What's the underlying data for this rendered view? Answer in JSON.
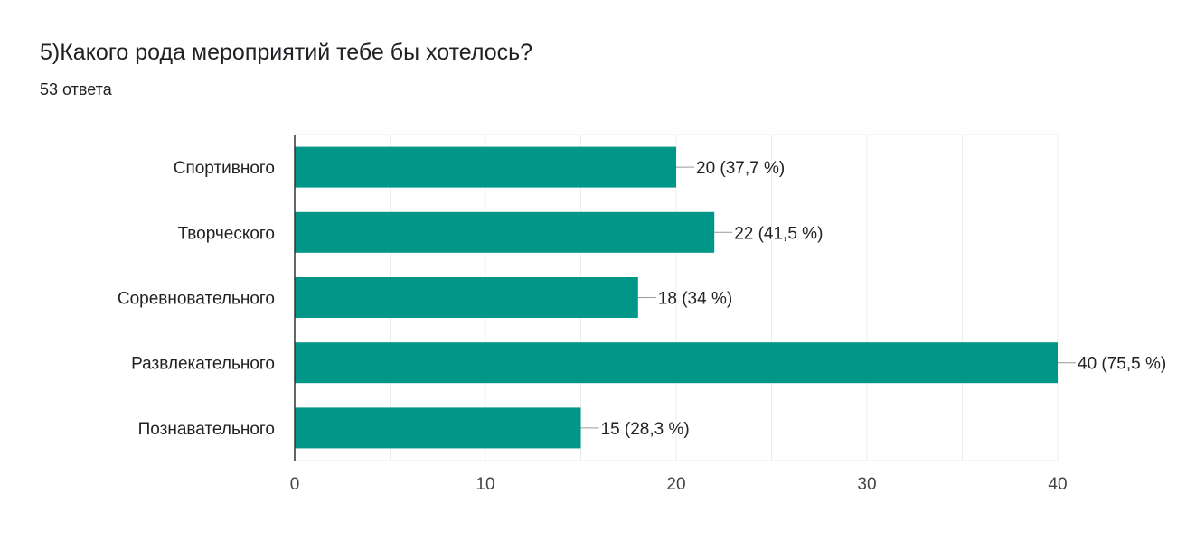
{
  "question": {
    "title": "5)Какого рода мероприятий тебе бы хотелось?",
    "responses": "53 ответа"
  },
  "colors": {
    "bar": "#009688",
    "grid": "#ececec",
    "axis": "#333333",
    "connector": "#999999"
  },
  "chart_data": {
    "type": "bar",
    "orientation": "horizontal",
    "title": "",
    "xlabel": "",
    "ylabel": "",
    "categories": [
      "Спортивного",
      "Творческого",
      "Соревновательного",
      "Развлекательного",
      "Познавательного"
    ],
    "values": [
      20,
      22,
      18,
      40,
      15
    ],
    "value_labels": [
      "20 (37,7 %)",
      "22 (41,5 %)",
      "18 (34 %)",
      "40 (75,5 %)",
      "15 (28,3 %)"
    ],
    "xlim": [
      0,
      40
    ],
    "xticks": [
      0,
      10,
      20,
      30,
      40
    ],
    "grid": true,
    "legend": "none"
  }
}
